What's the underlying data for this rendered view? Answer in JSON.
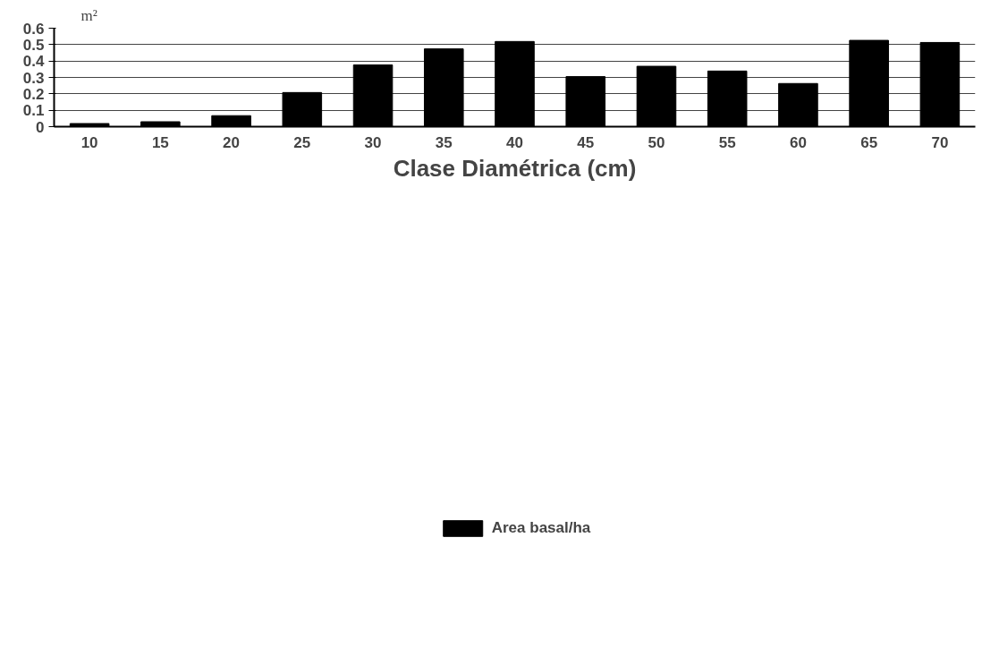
{
  "chart_data": {
    "type": "bar",
    "xlabel": "Clase Diamétrica (cm)",
    "ylabel": "m²",
    "categories": [
      "10",
      "15",
      "20",
      "25",
      "30",
      "35",
      "40",
      "45",
      "50",
      "55",
      "60",
      "65",
      "70"
    ],
    "series": [
      {
        "name": "Area basal/ha",
        "color": "#000000",
        "values": [
          0.019,
          0.03,
          0.067,
          0.208,
          0.376,
          0.474,
          0.519,
          0.305,
          0.368,
          0.339,
          0.263,
          0.526,
          0.513
        ]
      }
    ],
    "ylim": [
      0,
      0.6
    ],
    "yticks": [
      {
        "value": 0,
        "label": "0"
      },
      0.1,
      0.2,
      0.3,
      0.4,
      0.5,
      0.6
    ],
    "grid": "y",
    "legend": "bottom"
  }
}
